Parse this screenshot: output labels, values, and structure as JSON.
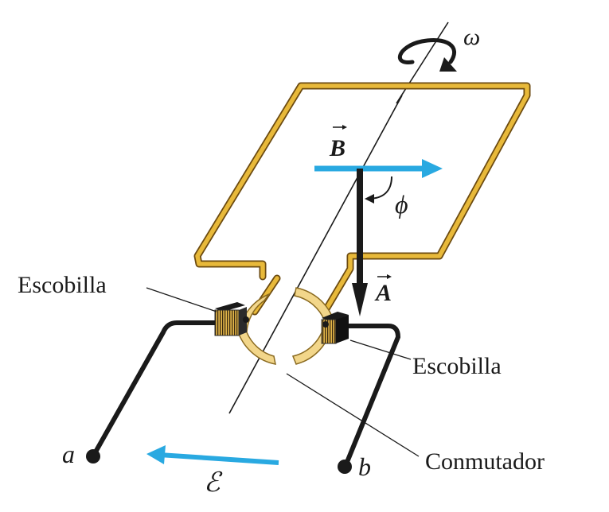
{
  "labels": {
    "omega": "ω",
    "B": "B",
    "phi": "ϕ",
    "A": "A",
    "brush_left": "Escobilla",
    "brush_right": "Escobilla",
    "commutator": "Conmutador",
    "terminal_a": "a",
    "terminal_b": "b",
    "emf": "ℰ"
  },
  "colors": {
    "loop": "#e8b93a",
    "loop_outline": "#6b4a10",
    "field_arrow": "#29a9e1",
    "emf_arrow": "#29a9e1",
    "wire": "#1a1a1a",
    "commutator": "#f2d68a",
    "brush": "#2b2b2b"
  }
}
